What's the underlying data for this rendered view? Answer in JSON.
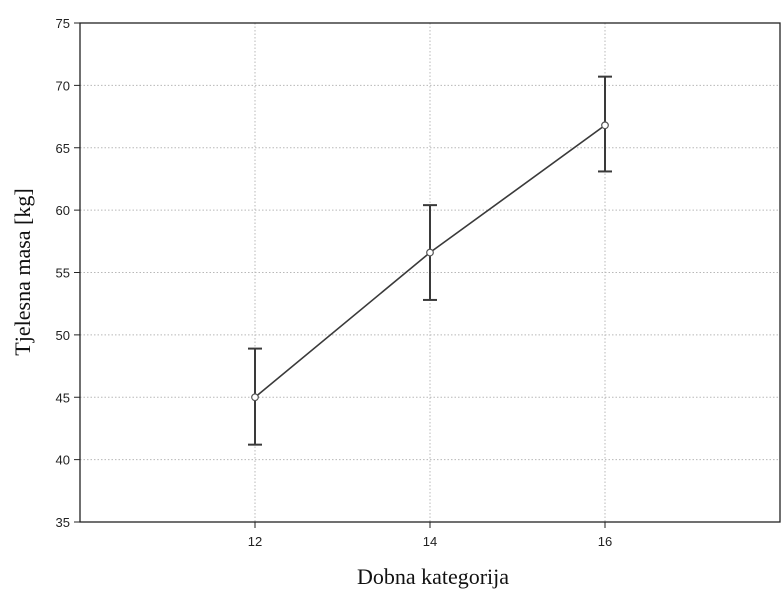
{
  "chart_data": {
    "type": "line",
    "title": "",
    "xlabel": "Dobna kategorija",
    "ylabel": "Tjelesna masa [kg]",
    "x_ticks": [
      12,
      14,
      16
    ],
    "y_ticks": [
      35,
      40,
      45,
      50,
      55,
      60,
      65,
      70,
      75
    ],
    "xlim": [
      10,
      18
    ],
    "ylim": [
      35,
      75
    ],
    "grid": true,
    "series": [
      {
        "x": [
          12,
          14,
          16
        ],
        "values": [
          45.0,
          56.6,
          66.8
        ],
        "error_low": [
          41.2,
          52.8,
          63.1
        ],
        "error_high": [
          48.9,
          60.4,
          70.7
        ]
      }
    ]
  }
}
